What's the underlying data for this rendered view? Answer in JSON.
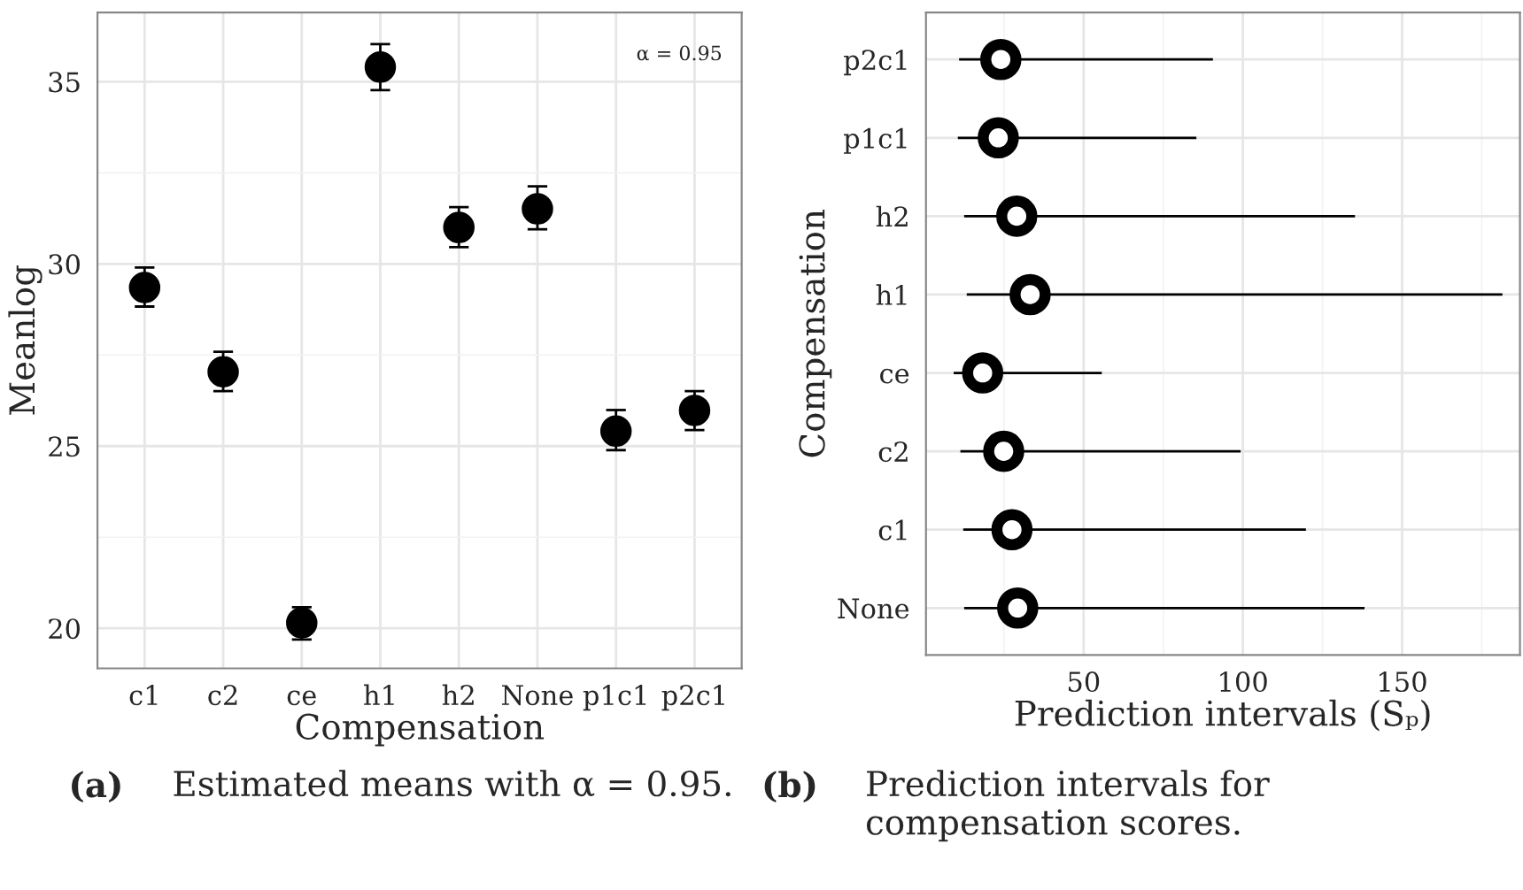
{
  "chart_data": [
    {
      "type": "scatter",
      "xlabel": "Compensation",
      "ylabel": "Meanlog",
      "categories": [
        "c1",
        "c2",
        "ce",
        "h1",
        "h2",
        "None",
        "p1c1",
        "p2c1"
      ],
      "values": [
        29.35,
        27.04,
        20.15,
        35.4,
        31.0,
        31.51,
        25.41,
        25.98
      ],
      "errors": [
        [
          28.83,
          29.9
        ],
        [
          26.51,
          27.59
        ],
        [
          19.69,
          20.58
        ],
        [
          34.77,
          36.03
        ],
        [
          30.46,
          31.56
        ],
        [
          30.95,
          32.13
        ],
        [
          24.89,
          25.99
        ],
        [
          25.44,
          26.51
        ]
      ],
      "color": "#000000",
      "marker": "circle",
      "ylim": [
        18.9,
        36.9
      ],
      "yticks": [
        20,
        25,
        30,
        35
      ],
      "grid": true,
      "annotations": [
        "α = 0.95",
        "(a)",
        "Estimated means with α = 0.95."
      ]
    },
    {
      "type": "scatter",
      "orientation": "horizontal",
      "xlabel": "Prediction intervals (Sₚ)",
      "ylabel": "Compensation",
      "categories": [
        "p2c1",
        "p1c1",
        "h2",
        "h1",
        "ce",
        "c2",
        "c1",
        "None"
      ],
      "values": [
        24.0,
        23.2,
        29.0,
        33.2,
        18.3,
        24.9,
        27.5,
        29.3
      ],
      "errors": [
        [
          10.9,
          90.6
        ],
        [
          10.5,
          85.4
        ],
        [
          12.5,
          135.2
        ],
        [
          13.3,
          181.5
        ],
        [
          9.2,
          55.7
        ],
        [
          11.3,
          99.3
        ],
        [
          12.2,
          119.8
        ],
        [
          12.5,
          138.2
        ]
      ],
      "color": "#000000",
      "marker": "circle",
      "xlim": [
        0.5,
        187
      ],
      "xticks": [
        50,
        100,
        150
      ],
      "grid": true,
      "annotations": [
        "(b)",
        "Prediction intervals for compensation scores."
      ]
    }
  ]
}
